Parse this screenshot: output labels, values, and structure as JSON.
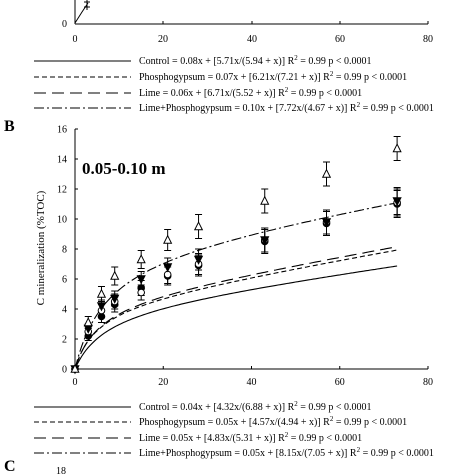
{
  "colors": {
    "ink": "#000000",
    "background": "#ffffff"
  },
  "panel_labels": {
    "b": "B",
    "c": "C"
  },
  "top_fragment": {
    "x_ticks": [
      "0",
      "20",
      "40",
      "60",
      "80"
    ],
    "y_tick": "0",
    "legend": [
      {
        "dash": "solid",
        "text": "Control = 0.08x + [5.71x/(5.94 + x)] R",
        "sup": "2",
        "tail": " = 0.99 p < 0.0001"
      },
      {
        "dash": "dashed",
        "text": "Phosphogypsum = 0.07x + [6.21x/(7.21 + x)] R",
        "sup": "2",
        "tail": " = 0.99 p < 0.0001"
      },
      {
        "dash": "longdash",
        "text": "Lime = 0.06x + [6.71x/(5.52 + x)] R",
        "sup": "2",
        "tail": " = 0.99 p < 0.0001"
      },
      {
        "dash": "dashdot",
        "text": "Lime+Phosphogypsum = 0.10x + [7.72x/(4.67 + x)] R",
        "sup": "2",
        "tail": " = 0.99 p < 0.0001"
      }
    ]
  },
  "panel_b": {
    "depth_label": "0.05-0.10 m",
    "legend": [
      {
        "dash": "solid",
        "text": "Control = 0.04x + [4.32x/(6.88 + x)] R",
        "sup": "2",
        "tail": " = 0.99 p < 0.0001"
      },
      {
        "dash": "dashed",
        "text": "Phosphogypsum = 0.05x + [4.57x/(4.94 + x)] R",
        "sup": "2",
        "tail": " = 0.99 p < 0.0001"
      },
      {
        "dash": "longdash",
        "text": "Lime = 0.05x + [4.83x/(5.31 + x)] R",
        "sup": "2",
        "tail": " = 0.99 p < 0.0001"
      },
      {
        "dash": "dashdot",
        "text": "Lime+Phosphogypsum = 0.05x + [8.15x/(7.05 + x)] R",
        "sup": "2",
        "tail": " = 0.99 p < 0.0001"
      }
    ]
  },
  "panel_c": {
    "y_tick": "18"
  },
  "chart_data": {
    "type": "scatter",
    "title": "",
    "xlabel": "",
    "ylabel": "C mineralization (%TOC)",
    "xlim": [
      0,
      80
    ],
    "ylim": [
      0,
      16
    ],
    "x_ticks": [
      0,
      20,
      40,
      60,
      80
    ],
    "y_ticks": [
      0,
      2,
      4,
      6,
      8,
      10,
      12,
      14,
      16
    ],
    "grid": false,
    "x": [
      0,
      3,
      6,
      9,
      15,
      21,
      28,
      43,
      57,
      73
    ],
    "series": [
      {
        "name": "Control",
        "marker": "circle-filled",
        "dash": "solid",
        "values": [
          0,
          2.2,
          3.5,
          4.3,
          5.4,
          6.2,
          6.9,
          8.5,
          9.7,
          11.0
        ],
        "errors": [
          0,
          0.3,
          0.4,
          0.5,
          0.5,
          0.6,
          0.7,
          0.8,
          0.8,
          0.9
        ],
        "fit": [
          0.04,
          4.32,
          6.88
        ]
      },
      {
        "name": "Phosphogypsum",
        "marker": "circle-open",
        "dash": "dashed",
        "values": [
          0,
          2.5,
          3.9,
          4.5,
          5.1,
          6.3,
          7.0,
          8.6,
          9.8,
          11.1
        ],
        "errors": [
          0,
          0.3,
          0.4,
          0.5,
          0.5,
          0.6,
          0.7,
          0.8,
          0.8,
          0.9
        ],
        "fit": [
          0.05,
          4.57,
          4.94
        ]
      },
      {
        "name": "Lime",
        "marker": "triangle-down-filled",
        "dash": "longdash",
        "values": [
          0,
          2.7,
          4.2,
          4.7,
          6.0,
          6.8,
          7.3,
          8.6,
          9.8,
          11.2
        ],
        "errors": [
          0,
          0.3,
          0.4,
          0.5,
          0.5,
          0.6,
          0.7,
          0.8,
          0.8,
          0.9
        ],
        "fit": [
          0.05,
          4.83,
          5.31
        ]
      },
      {
        "name": "Lime+Phosphogypsum",
        "marker": "triangle-up-open",
        "dash": "dashdot",
        "values": [
          0,
          3.1,
          5.0,
          6.2,
          7.3,
          8.6,
          9.5,
          11.2,
          13.0,
          14.7
        ],
        "errors": [
          0,
          0.4,
          0.5,
          0.6,
          0.6,
          0.7,
          0.8,
          0.8,
          0.8,
          0.8
        ],
        "fit": [
          0.05,
          8.15,
          7.05
        ]
      }
    ]
  }
}
